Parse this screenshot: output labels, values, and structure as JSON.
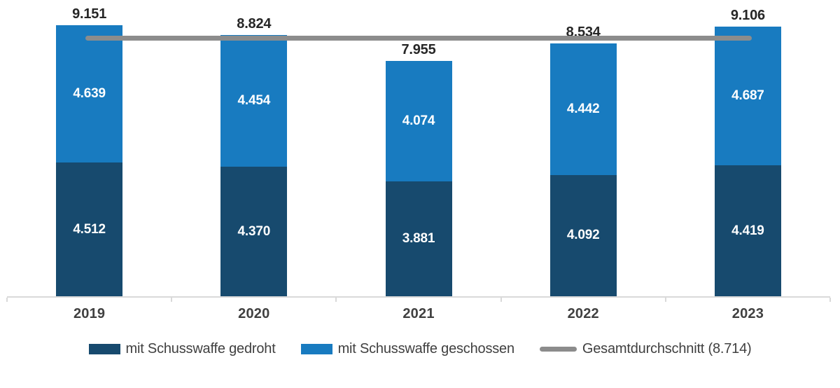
{
  "chart_data": {
    "type": "bar",
    "subtype": "stacked-bars-with-average-line",
    "title": "",
    "xlabel": "",
    "ylabel": "",
    "ylim": [
      0,
      10000
    ],
    "grid": false,
    "legend_position": "bottom",
    "categories": [
      "2019",
      "2020",
      "2021",
      "2022",
      "2023"
    ],
    "series": [
      {
        "name": "mit Schusswaffe gedroht",
        "color": "#174A6E",
        "values": [
          4512,
          4370,
          3881,
          4092,
          4419
        ],
        "labels": [
          "4.512",
          "4.370",
          "3.881",
          "4.092",
          "4.419"
        ]
      },
      {
        "name": "mit Schusswaffe geschossen",
        "color": "#187BC0",
        "values": [
          4639,
          4454,
          4074,
          4442,
          4687
        ],
        "labels": [
          "4.639",
          "4.454",
          "4.074",
          "4.442",
          "4.687"
        ]
      }
    ],
    "totals": {
      "values": [
        9151,
        8824,
        7955,
        8534,
        9106
      ],
      "labels": [
        "9.151",
        "8.824",
        "7.955",
        "8.534",
        "9.106"
      ]
    },
    "average_line": {
      "name": "Gesamtdurchschnitt (8.714)",
      "value": 8714,
      "color": "#8C8C8C"
    },
    "colors": {
      "axis": "#D9D9D9",
      "total_label": "#262626",
      "category_label": "#404040",
      "legend_text": "#404040",
      "value_label": "#FFFFFF"
    }
  }
}
